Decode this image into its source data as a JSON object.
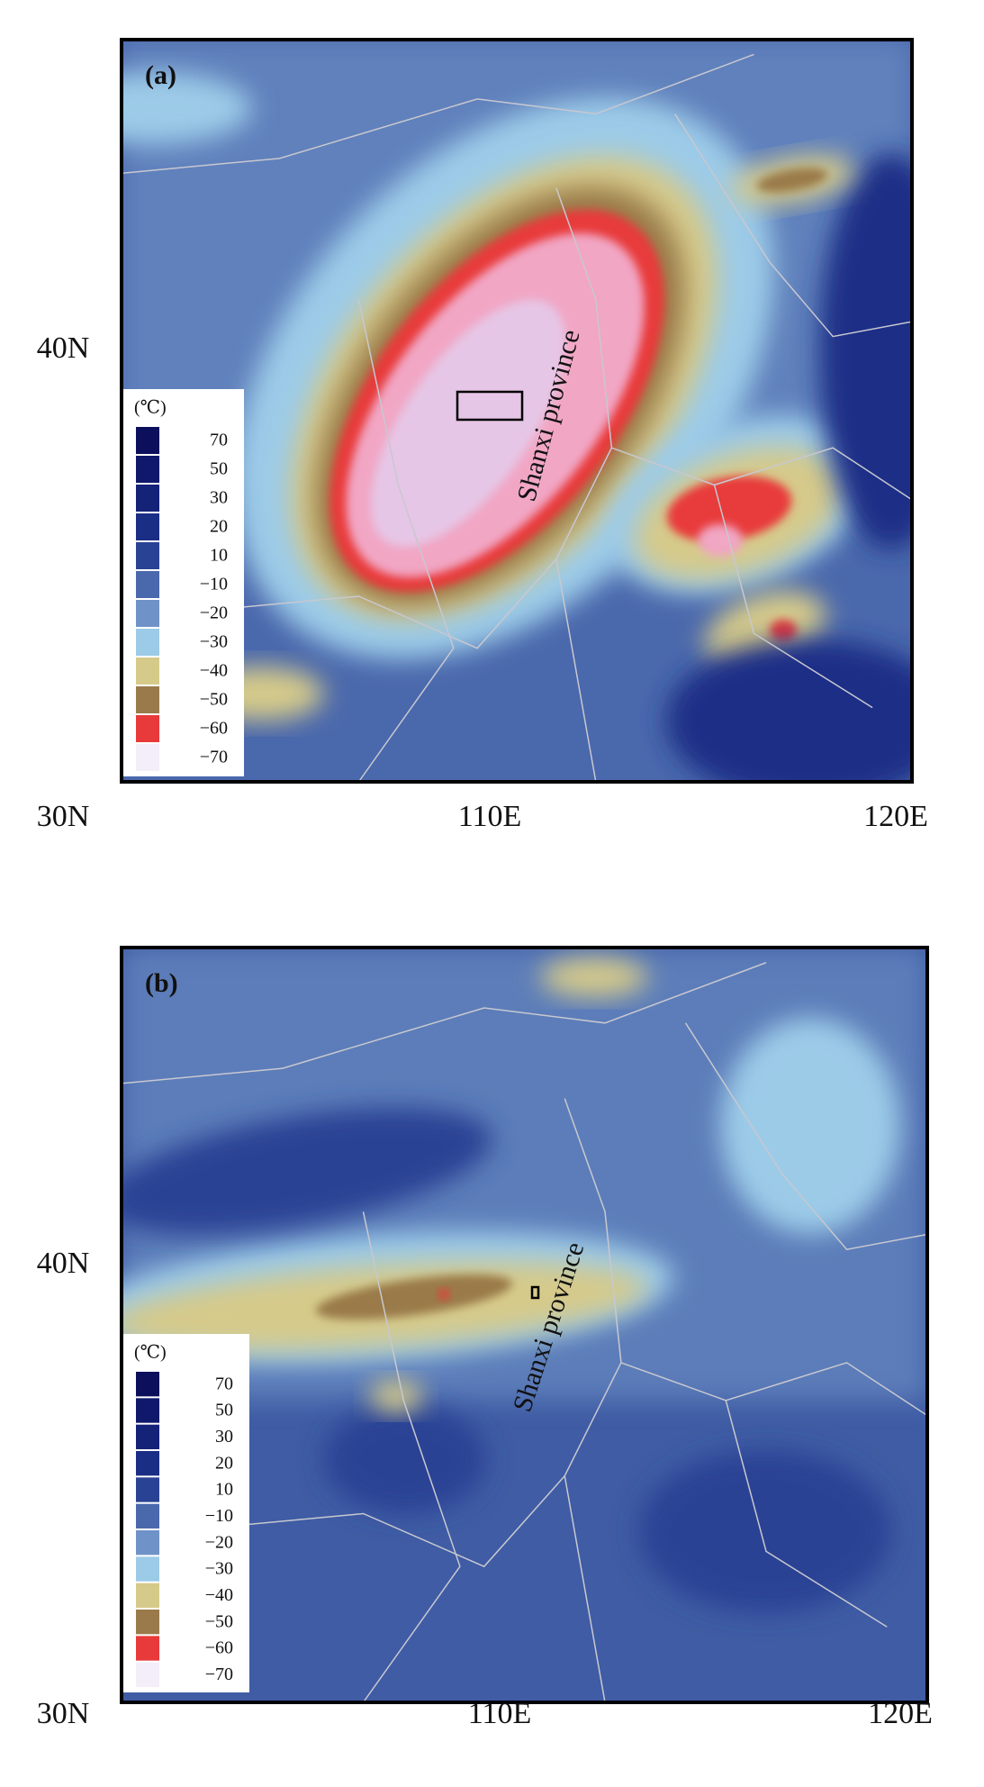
{
  "panels": [
    {
      "label": "(a)",
      "province": "Shanxi province",
      "lat_labels": [
        "40N",
        "30N"
      ],
      "lon_labels": [
        "110E",
        "120E"
      ],
      "legend": {
        "unit": "(℃)",
        "entries": [
          {
            "label": "70",
            "color": "#0b0f5c"
          },
          {
            "label": "50",
            "color": "#0f186a"
          },
          {
            "label": "30",
            "color": "#142278"
          },
          {
            "label": "20",
            "color": "#1b2e86"
          },
          {
            "label": "10",
            "color": "#2a4294"
          },
          {
            "label": "−10",
            "color": "#4a68ac"
          },
          {
            "label": "−20",
            "color": "#6f93c8"
          },
          {
            "label": "−30",
            "color": "#9ccbe8"
          },
          {
            "label": "−40",
            "color": "#d6ca8a"
          },
          {
            "label": "−50",
            "color": "#9a7a4a"
          },
          {
            "label": "−60",
            "color": "#e83a3a"
          },
          {
            "label": "−70",
            "color": "#f3eef8"
          }
        ]
      }
    },
    {
      "label": "(b)",
      "province": "Shanxi province",
      "lat_labels": [
        "40N",
        "30N"
      ],
      "lon_labels": [
        "110E",
        "120E"
      ],
      "legend": {
        "unit": "(℃)",
        "entries": [
          {
            "label": "70",
            "color": "#0b0f5c"
          },
          {
            "label": "50",
            "color": "#0f186a"
          },
          {
            "label": "30",
            "color": "#142278"
          },
          {
            "label": "20",
            "color": "#1b2e86"
          },
          {
            "label": "10",
            "color": "#2a4294"
          },
          {
            "label": "−10",
            "color": "#4a68ac"
          },
          {
            "label": "−20",
            "color": "#6f93c8"
          },
          {
            "label": "−30",
            "color": "#9ccbe8"
          },
          {
            "label": "−40",
            "color": "#d6ca8a"
          },
          {
            "label": "−50",
            "color": "#9a7a4a"
          },
          {
            "label": "−60",
            "color": "#e83a3a"
          },
          {
            "label": "−70",
            "color": "#f3eef8"
          }
        ]
      }
    }
  ]
}
